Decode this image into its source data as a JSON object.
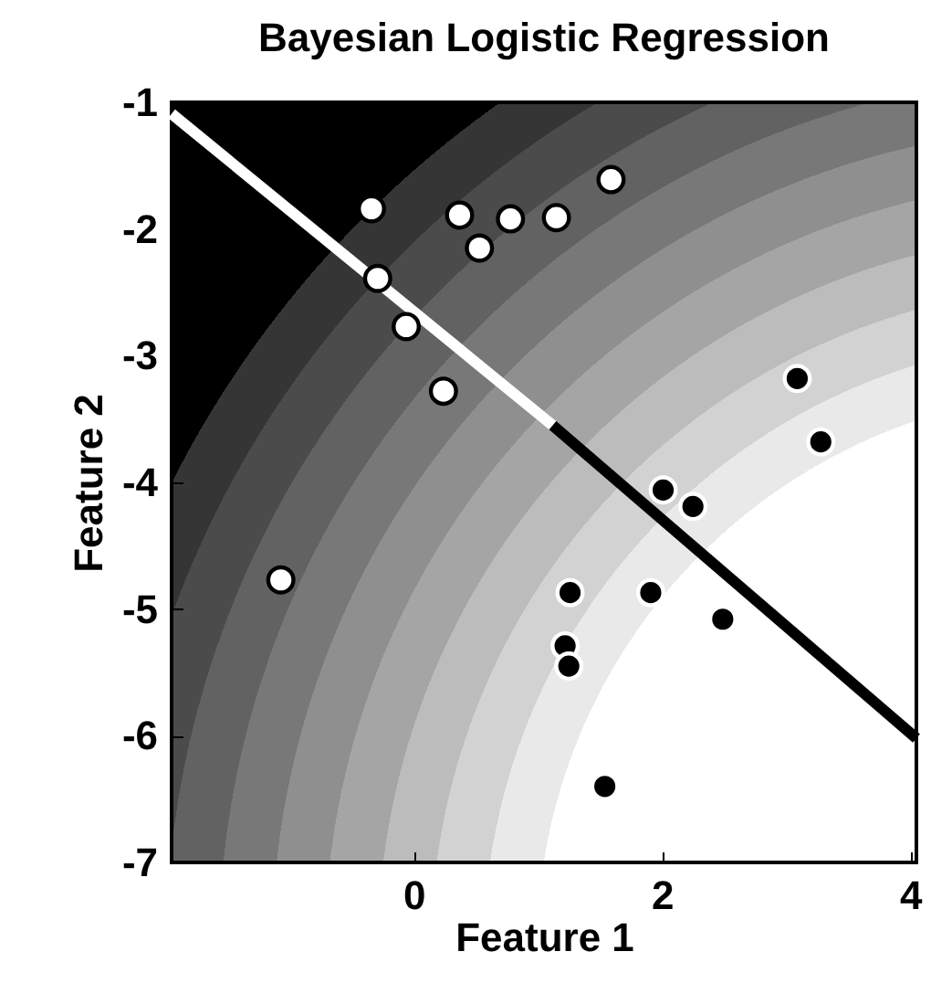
{
  "chart_data": {
    "type": "scatter",
    "title": "Bayesian Logistic Regression",
    "xlabel": "Feature 1",
    "ylabel": "Feature 2",
    "xlim": [
      -1.95,
      4.05
    ],
    "ylim": [
      -7,
      -1
    ],
    "xticks": [
      0,
      2,
      4
    ],
    "yticks": [
      -7,
      -6,
      -5,
      -4,
      -3,
      -2,
      -1
    ],
    "grid": false,
    "series": [
      {
        "type": "line",
        "color": "#ffffff",
        "x": [
          -1.95,
          1.12
        ],
        "values": [
          -1.09,
          -3.55
        ]
      },
      {
        "type": "line",
        "color": "#000000",
        "x": [
          1.12,
          4.05
        ],
        "values": [
          -3.55,
          -6.02
        ]
      },
      {
        "type": "scatter",
        "marker": "circle",
        "color": "#ffffff",
        "x": [
          -0.34,
          0.37,
          0.53,
          0.78,
          1.15,
          1.59,
          -0.29,
          -0.06,
          0.24,
          -1.07
        ],
        "values": [
          -1.84,
          -1.89,
          -2.15,
          -1.92,
          -1.91,
          -1.61,
          -2.39,
          -2.77,
          -3.28,
          -4.77
        ]
      },
      {
        "type": "scatter",
        "marker": "circle",
        "color": "#000000",
        "x": [
          3.09,
          3.28,
          2.01,
          2.25,
          1.26,
          1.91,
          2.49,
          1.54,
          1.22,
          1.25
        ],
        "values": [
          -3.18,
          -3.68,
          -4.06,
          -4.19,
          -4.87,
          -4.87,
          -5.08,
          -6.4,
          -5.29,
          -5.45
        ]
      }
    ]
  }
}
